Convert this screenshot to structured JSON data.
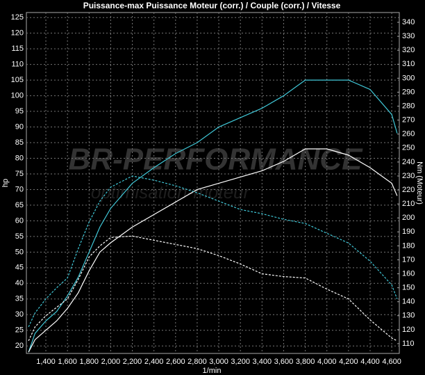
{
  "chart_data": {
    "type": "line",
    "title": "Puissance-max Puissance Moteur (corr.) / Couple (corr.) / Vitesse",
    "xlabel": "1/min",
    "ylabel": "hp",
    "y2label": "Nm (Moteur)",
    "watermark": [
      "BR-PERFORMANCE",
      "optimisation-moteur"
    ],
    "x": [
      1240,
      1300,
      1400,
      1500,
      1600,
      1700,
      1800,
      1900,
      2000,
      2200,
      2400,
      2600,
      2800,
      3000,
      3200,
      3400,
      3600,
      3800,
      4000,
      4200,
      4400,
      4600,
      4650
    ],
    "series": [
      {
        "color": "#40c8d8",
        "dash": false,
        "axis": "y",
        "values": [
          18,
          24,
          28,
          31,
          36,
          42,
          50,
          58,
          64,
          72,
          77,
          81.5,
          85,
          90,
          93,
          96,
          100,
          105,
          105,
          105,
          102,
          94,
          88
        ]
      },
      {
        "color": "#ffffff",
        "dash": false,
        "axis": "y",
        "values": [
          18,
          22,
          25,
          28,
          32,
          37,
          44,
          50,
          53,
          58,
          62,
          66,
          70,
          72,
          74,
          76,
          79,
          83,
          83,
          81,
          77,
          72,
          68
        ]
      },
      {
        "color": "#40c8d8",
        "dash": true,
        "axis": "y2",
        "values": [
          122,
          132,
          142,
          150,
          157,
          178,
          197,
          212,
          222,
          230,
          227,
          223,
          218,
          212,
          206,
          203,
          199,
          196,
          189,
          182,
          169,
          152,
          142
        ]
      },
      {
        "color": "#ffffff",
        "dash": true,
        "axis": "y2",
        "values": [
          112,
          122,
          130,
          136,
          142,
          156,
          172,
          180,
          186,
          187,
          184,
          181,
          178,
          173,
          167,
          160,
          158,
          157,
          149,
          142,
          127,
          114,
          112
        ]
      }
    ],
    "xlim": [
      1220,
      4670
    ],
    "xticks": [
      {
        "value": 1400,
        "label": "1,400"
      },
      {
        "value": 1600,
        "label": "1,600"
      },
      {
        "value": 1800,
        "label": "1,800"
      },
      {
        "value": 2000,
        "label": "2,000"
      },
      {
        "value": 2200,
        "label": "2,200"
      },
      {
        "value": 2400,
        "label": "2,400"
      },
      {
        "value": 2600,
        "label": "2,600"
      },
      {
        "value": 2800,
        "label": "2,800"
      },
      {
        "value": 3000,
        "label": "3,000"
      },
      {
        "value": 3200,
        "label": "3,200"
      },
      {
        "value": 3400,
        "label": "3,400"
      },
      {
        "value": 3600,
        "label": "3,600"
      },
      {
        "value": 3800,
        "label": "3,800"
      },
      {
        "value": 4000,
        "label": "4,000"
      },
      {
        "value": 4200,
        "label": "4,200"
      },
      {
        "value": 4400,
        "label": "4,400"
      },
      {
        "value": 4600,
        "label": "4,600"
      }
    ],
    "ylim": [
      17.6,
      126.6
    ],
    "yticks": [
      20,
      25,
      30,
      35,
      40,
      45,
      50,
      55,
      60,
      65,
      70,
      75,
      80,
      85,
      90,
      95,
      100,
      105,
      110,
      115,
      120,
      125
    ],
    "y2lim": [
      103,
      347
    ],
    "y2ticks": [
      110,
      120,
      130,
      140,
      150,
      160,
      170,
      180,
      190,
      200,
      210,
      220,
      230,
      240,
      250,
      260,
      270,
      280,
      290,
      300,
      310,
      320,
      330,
      340
    ],
    "grid": true
  }
}
